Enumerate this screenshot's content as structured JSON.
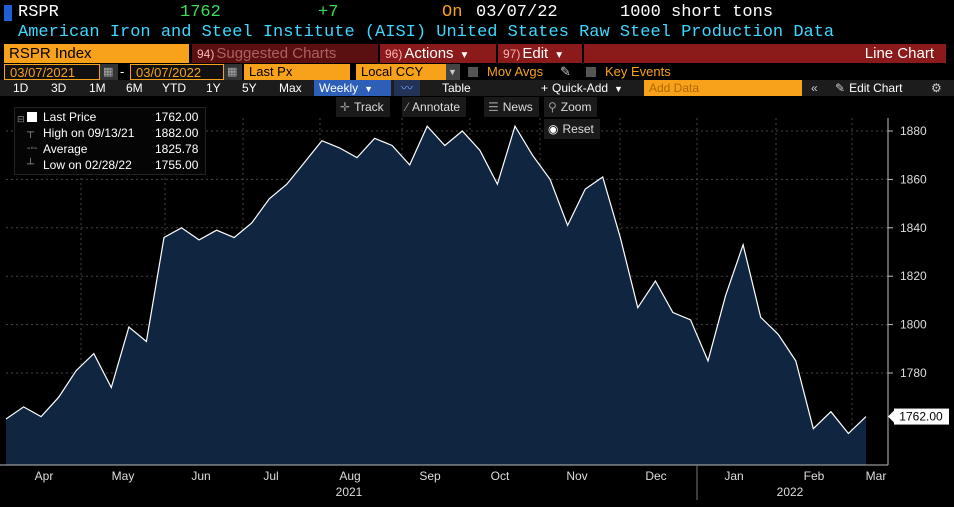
{
  "header": {
    "ticker": "RSPR",
    "last": "1762",
    "change": "+7",
    "on_label": "On",
    "date": "03/07/22",
    "units": "1000 short tons",
    "description": "American Iron and Steel Institute (AISI) United States Raw Steel Production Data"
  },
  "toolbar1": {
    "index": "RSPR Index",
    "suggested_num": "94)",
    "suggested": "Suggested Charts",
    "actions_num": "96)",
    "actions": "Actions",
    "edit_num": "97)",
    "edit": "Edit",
    "chart_type": "Line Chart"
  },
  "toolbar2": {
    "start_date": "03/07/2021",
    "dash": "-",
    "end_date": "03/07/2022",
    "field": "Last Px",
    "currency": "Local CCY",
    "mov_avgs": "Mov Avgs",
    "key_events": "Key Events"
  },
  "toolbar3": {
    "ranges": [
      "1D",
      "3D",
      "1M",
      "6M",
      "YTD",
      "1Y",
      "5Y",
      "Max"
    ],
    "frequency": "Weekly",
    "table": "Table",
    "quick_add": "Quick-Add",
    "add_data_placeholder": "Add Data",
    "edit_chart": "Edit Chart"
  },
  "toolbar4": {
    "track": "Track",
    "annotate": "Annotate",
    "news": "News",
    "zoom": "Zoom",
    "reset": "Reset"
  },
  "legend": {
    "last_label": "Last Price",
    "last_value": "1762.00",
    "high_label": "High on 09/13/21",
    "high_value": "1882.00",
    "avg_label": "Average",
    "avg_value": "1825.78",
    "low_label": "Low on 02/28/22",
    "low_value": "1755.00"
  },
  "colors": {
    "accent_orange": "#f7a21a",
    "green": "#3ddc5a",
    "cyan": "#3fd6ff",
    "maroon": "#8b1a1a",
    "area_fill": "#0f2540",
    "line": "#ffffff"
  },
  "chart_data": {
    "type": "area",
    "title": "RSPR Index",
    "xlabel": "",
    "ylabel": "",
    "frequency": "weekly",
    "ylim": [
      1745,
      1890
    ],
    "yticks": [
      1780,
      1800,
      1820,
      1840,
      1860,
      1880
    ],
    "ytick_labels": [
      "1780",
      "1800",
      "1820",
      "1840",
      "1860",
      "1880"
    ],
    "month_labels": [
      "Apr",
      "May",
      "Jun",
      "Jul",
      "Aug",
      "Sep",
      "Oct",
      "Nov",
      "Dec",
      "Jan",
      "Feb",
      "Mar"
    ],
    "year_labels": [
      "2021",
      "2022"
    ],
    "last_value_label": "1762.00",
    "series": [
      {
        "name": "Last Price",
        "values": [
          1761,
          1766,
          1762,
          1770,
          1781,
          1788,
          1774,
          1799,
          1793,
          1836,
          1840,
          1835,
          1839,
          1836,
          1842,
          1852,
          1858,
          1867,
          1876,
          1873,
          1869,
          1877,
          1874,
          1866,
          1882,
          1874,
          1880,
          1872,
          1858,
          1882,
          1870,
          1860,
          1841,
          1856,
          1861,
          1836,
          1807,
          1818,
          1805,
          1802,
          1785,
          1812,
          1833,
          1803,
          1796,
          1785,
          1757,
          1764,
          1755,
          1762
        ]
      }
    ]
  }
}
